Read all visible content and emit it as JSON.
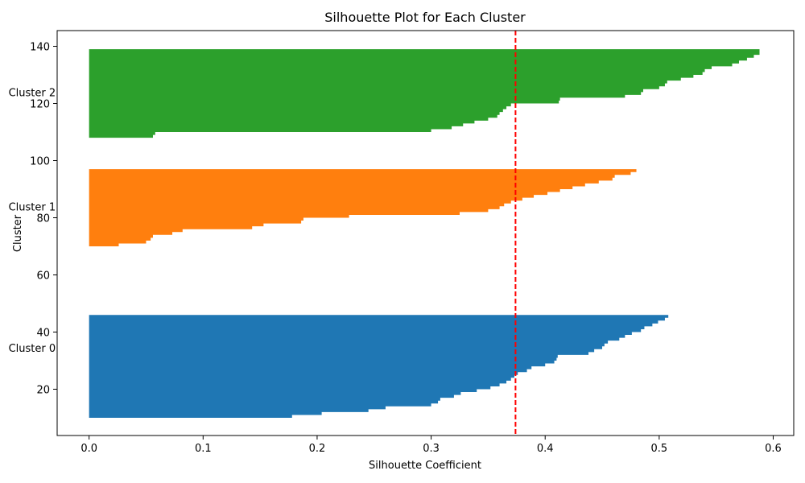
{
  "chart_data": {
    "type": "area",
    "title": "Silhouette Plot for Each Cluster",
    "xlabel": "Silhouette Coefficient",
    "ylabel": "Cluster",
    "xlim": [
      -0.028,
      0.618
    ],
    "ylim": [
      3.8,
      145.5
    ],
    "xticks": [
      0.0,
      0.1,
      0.2,
      0.3,
      0.4,
      0.5,
      0.6
    ],
    "xtick_labels": [
      "0.0",
      "0.1",
      "0.2",
      "0.3",
      "0.4",
      "0.5",
      "0.6"
    ],
    "yticks": [
      20,
      40,
      60,
      80,
      100,
      120,
      140
    ],
    "ytick_labels": [
      "20",
      "40",
      "60",
      "80",
      "100",
      "120",
      "140"
    ],
    "grid": false,
    "average_line": {
      "x": 0.374,
      "color": "#ff0000",
      "style": "dashed"
    },
    "series": [
      {
        "label": "Cluster 0",
        "label_position": {
          "x": -0.05,
          "y": 34.5
        },
        "color": "#1f77b4",
        "y_start": 10,
        "values": [
          0.178,
          0.204,
          0.245,
          0.26,
          0.3,
          0.306,
          0.308,
          0.32,
          0.326,
          0.34,
          0.352,
          0.36,
          0.366,
          0.37,
          0.373,
          0.376,
          0.384,
          0.388,
          0.4,
          0.408,
          0.41,
          0.411,
          0.438,
          0.443,
          0.45,
          0.452,
          0.455,
          0.465,
          0.47,
          0.476,
          0.484,
          0.487,
          0.494,
          0.499,
          0.505,
          0.508
        ]
      },
      {
        "label": "Cluster 1",
        "label_position": {
          "x": -0.05,
          "y": 84
        },
        "color": "#ff7f0e",
        "y_start": 70,
        "values": [
          0.026,
          0.05,
          0.054,
          0.056,
          0.073,
          0.082,
          0.143,
          0.153,
          0.186,
          0.188,
          0.228,
          0.325,
          0.35,
          0.36,
          0.364,
          0.37,
          0.38,
          0.39,
          0.402,
          0.413,
          0.424,
          0.435,
          0.447,
          0.459,
          0.461,
          0.475,
          0.48
        ]
      },
      {
        "label": "Cluster 2",
        "label_position": {
          "x": -0.05,
          "y": 124
        },
        "color": "#2ca02c",
        "y_start": 108,
        "values": [
          0.056,
          0.058,
          0.3,
          0.318,
          0.328,
          0.338,
          0.35,
          0.358,
          0.36,
          0.363,
          0.366,
          0.37,
          0.412,
          0.413,
          0.47,
          0.484,
          0.486,
          0.5,
          0.505,
          0.507,
          0.519,
          0.53,
          0.538,
          0.54,
          0.546,
          0.564,
          0.57,
          0.577,
          0.583,
          0.588,
          0.588
        ]
      }
    ]
  }
}
